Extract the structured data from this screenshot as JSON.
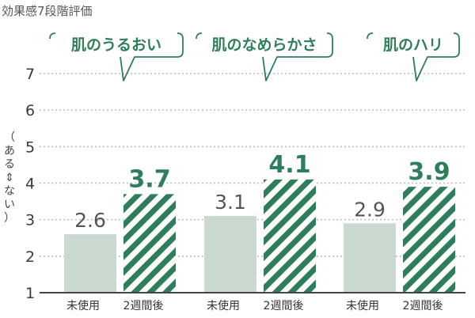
{
  "chart_data": {
    "type": "bar",
    "title": "効果感7段階評価",
    "ylabel_lines": [
      "（",
      "あ",
      "る",
      "⇕",
      "な",
      "い",
      "）"
    ],
    "ylim": [
      1,
      7
    ],
    "yticks": [
      1,
      2,
      3,
      4,
      5,
      6,
      7
    ],
    "grid": true,
    "groups": [
      {
        "name": "肌のうるおい",
        "bars": [
          {
            "label": "未使用",
            "value": 2.6,
            "value_label": "2.6"
          },
          {
            "label": "2週間後",
            "value": 3.7,
            "value_label": "3.7"
          }
        ]
      },
      {
        "name": "肌のなめらかさ",
        "bars": [
          {
            "label": "未使用",
            "value": 3.1,
            "value_label": "3.1"
          },
          {
            "label": "2週間後",
            "value": 4.1,
            "value_label": "4.1"
          }
        ]
      },
      {
        "name": "肌のハリ",
        "bars": [
          {
            "label": "未使用",
            "value": 2.9,
            "value_label": "2.9"
          },
          {
            "label": "2週間後",
            "value": 3.9,
            "value_label": "3.9"
          }
        ]
      }
    ],
    "colors": {
      "before_fill": "#c9d9d0",
      "after_stripe": "#2e7d5b",
      "accent_text": "#2e7d5b",
      "axis": "#444444",
      "grid": "#bbbbbb"
    }
  }
}
